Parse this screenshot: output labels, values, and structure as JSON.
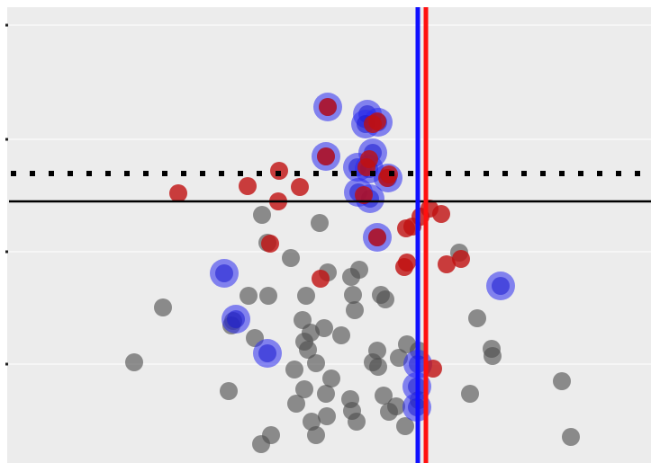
{
  "chart_data": {
    "type": "scatter",
    "xlim": [
      0,
      723
    ],
    "ylim": [
      0,
      515
    ],
    "grid": true,
    "colors": {
      "background": "#ececec",
      "grid": "#f6f6f6",
      "gray_points": "#4d4d4d",
      "red_points": "#c01010",
      "blue_ring": "#2a2af0",
      "blue_line": "#1010ff",
      "red_line": "#ff1010",
      "hline": "#000000"
    },
    "reference_lines": {
      "solid_h": 224,
      "dotted_h": 193,
      "blue_v": 464,
      "red_v": 473
    },
    "y_ticks": [
      28,
      155,
      280,
      405
    ],
    "series": [
      {
        "kind": "gray",
        "points": [
          [
            149,
            403
          ],
          [
            181,
            342
          ],
          [
            254,
            435
          ],
          [
            276,
            329
          ],
          [
            298,
            329
          ],
          [
            291,
            239
          ],
          [
            355,
            248
          ],
          [
            297,
            270
          ],
          [
            323,
            287
          ],
          [
            340,
            329
          ],
          [
            364,
            303
          ],
          [
            390,
            308
          ],
          [
            399,
            300
          ],
          [
            392,
            328
          ],
          [
            394,
            345
          ],
          [
            423,
            328
          ],
          [
            428,
            333
          ],
          [
            336,
            356
          ],
          [
            345,
            370
          ],
          [
            379,
            373
          ],
          [
            360,
            365
          ],
          [
            338,
            380
          ],
          [
            342,
            389
          ],
          [
            351,
            404
          ],
          [
            327,
            411
          ],
          [
            368,
            421
          ],
          [
            338,
            433
          ],
          [
            362,
            438
          ],
          [
            329,
            449
          ],
          [
            346,
            469
          ],
          [
            363,
            463
          ],
          [
            351,
            484
          ],
          [
            301,
            484
          ],
          [
            290,
            494
          ],
          [
            389,
            444
          ],
          [
            391,
            457
          ],
          [
            396,
            469
          ],
          [
            419,
            390
          ],
          [
            414,
            403
          ],
          [
            420,
            408
          ],
          [
            443,
            398
          ],
          [
            452,
            383
          ],
          [
            426,
            440
          ],
          [
            440,
            452
          ],
          [
            432,
            458
          ],
          [
            450,
            474
          ],
          [
            465,
            445
          ],
          [
            465,
            390
          ],
          [
            510,
            281
          ],
          [
            530,
            354
          ],
          [
            546,
            388
          ],
          [
            547,
            396
          ],
          [
            522,
            438
          ],
          [
            624,
            424
          ],
          [
            634,
            486
          ],
          [
            283,
            376
          ],
          [
            259,
            357
          ],
          [
            257,
            362
          ]
        ]
      },
      {
        "kind": "red",
        "points": [
          [
            198,
            215
          ],
          [
            275,
            207
          ],
          [
            310,
            190
          ],
          [
            333,
            208
          ],
          [
            309,
            224
          ],
          [
            300,
            271
          ],
          [
            356,
            310
          ],
          [
            404,
            217
          ],
          [
            407,
            186
          ],
          [
            410,
            177
          ],
          [
            414,
            138
          ],
          [
            419,
            135
          ],
          [
            430,
            198
          ],
          [
            432,
            194
          ],
          [
            451,
            254
          ],
          [
            458,
            252
          ],
          [
            452,
            292
          ],
          [
            449,
            297
          ],
          [
            467,
            241
          ],
          [
            477,
            232
          ],
          [
            490,
            238
          ],
          [
            496,
            294
          ],
          [
            512,
            288
          ],
          [
            481,
            410
          ],
          [
            364,
            119
          ],
          [
            362,
            174
          ],
          [
            419,
            264
          ]
        ]
      },
      {
        "kind": "blue",
        "points": [
          [
            364,
            119
          ],
          [
            408,
            127
          ],
          [
            420,
            136
          ],
          [
            406,
            138
          ],
          [
            414,
            170
          ],
          [
            362,
            174
          ],
          [
            397,
            186
          ],
          [
            410,
            188
          ],
          [
            431,
            198
          ],
          [
            398,
            214
          ],
          [
            411,
            221
          ],
          [
            419,
            264
          ],
          [
            249,
            304
          ],
          [
            262,
            355
          ],
          [
            297,
            393
          ],
          [
            556,
            318
          ],
          [
            464,
            405
          ],
          [
            463,
            430
          ],
          [
            463,
            453
          ]
        ]
      }
    ]
  }
}
